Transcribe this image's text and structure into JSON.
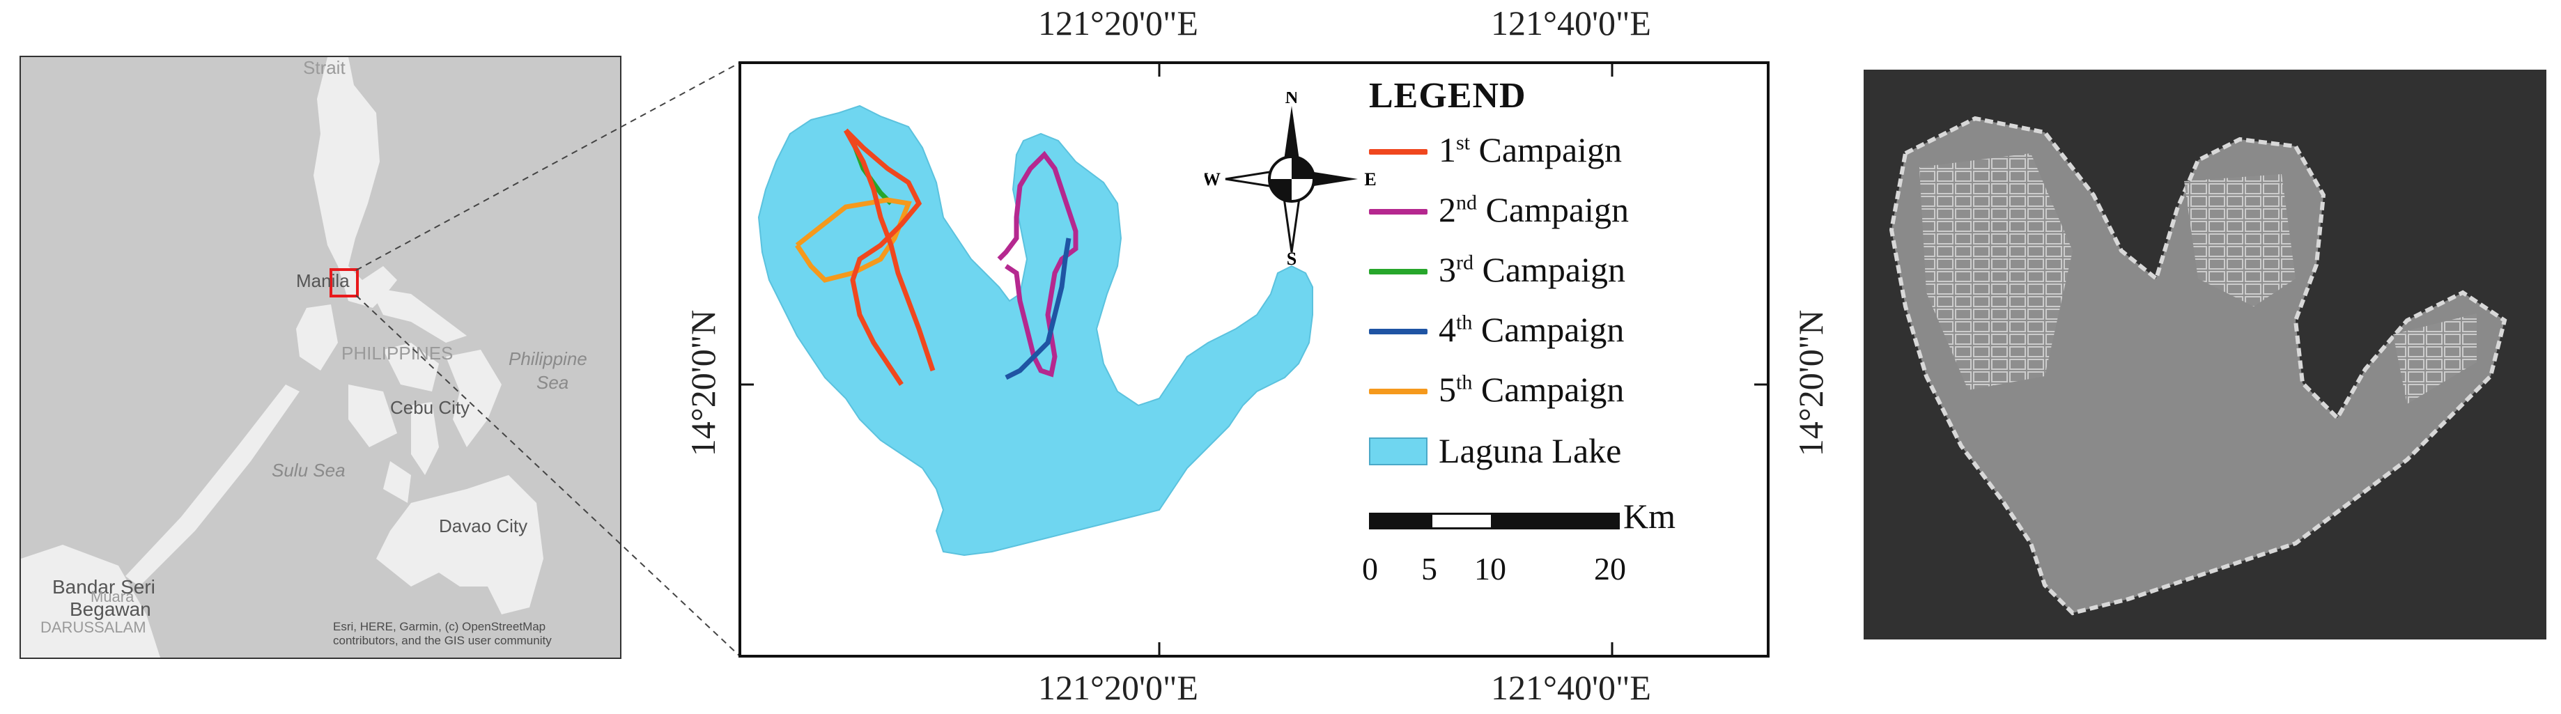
{
  "overview_map": {
    "labels": {
      "strait": "Strait",
      "manila": "Manila",
      "philippines": "PHILIPPINES",
      "philippine_sea_1": "Philippine",
      "philippine_sea_2": "Sea",
      "cebu": "Cebu City",
      "sulu_sea": "Sulu Sea",
      "davao": "Davao City",
      "bandar_1": "Bandar Seri",
      "bandar_2": "Begawan",
      "darussalam": "DARUSSALAM",
      "muara": "Muara"
    },
    "credit": "Esri, HERE, Garmin, (c) OpenStreetMap contributors, and the GIS user community",
    "colors": {
      "land": "#eeeeee",
      "sea": "#c9c9c9",
      "highlight": "#e8191b"
    }
  },
  "study_map": {
    "coords": {
      "top_left": "121°20'0\"E",
      "top_right": "121°40'0\"E",
      "bottom_left": "121°20'0\"E",
      "bottom_right": "121°40'0\"E",
      "left": "14°20'0\"N",
      "right": "14°20'0\"N"
    },
    "compass": {
      "n": "N",
      "s": "S",
      "e": "E",
      "w": "W"
    },
    "legend": {
      "title": "LEGEND",
      "items": [
        {
          "num": "1",
          "sup": "st",
          "text": " Campaign",
          "color": "#f0471e"
        },
        {
          "num": "2",
          "sup": "nd",
          "text": " Campaign",
          "color": "#b5288f"
        },
        {
          "num": "3",
          "sup": "rd",
          "text": " Campaign",
          "color": "#27a62b"
        },
        {
          "num": "4",
          "sup": "th",
          "text": " Campaign",
          "color": "#1f54a3"
        },
        {
          "num": "5",
          "sup": "th",
          "text": " Campaign",
          "color": "#f5991c"
        }
      ],
      "lake_label": "Laguna Lake",
      "lake_color": "#6fd6f0"
    },
    "scale": {
      "ticks": [
        "0",
        "5",
        "10",
        "20"
      ],
      "unit": "Km"
    }
  }
}
